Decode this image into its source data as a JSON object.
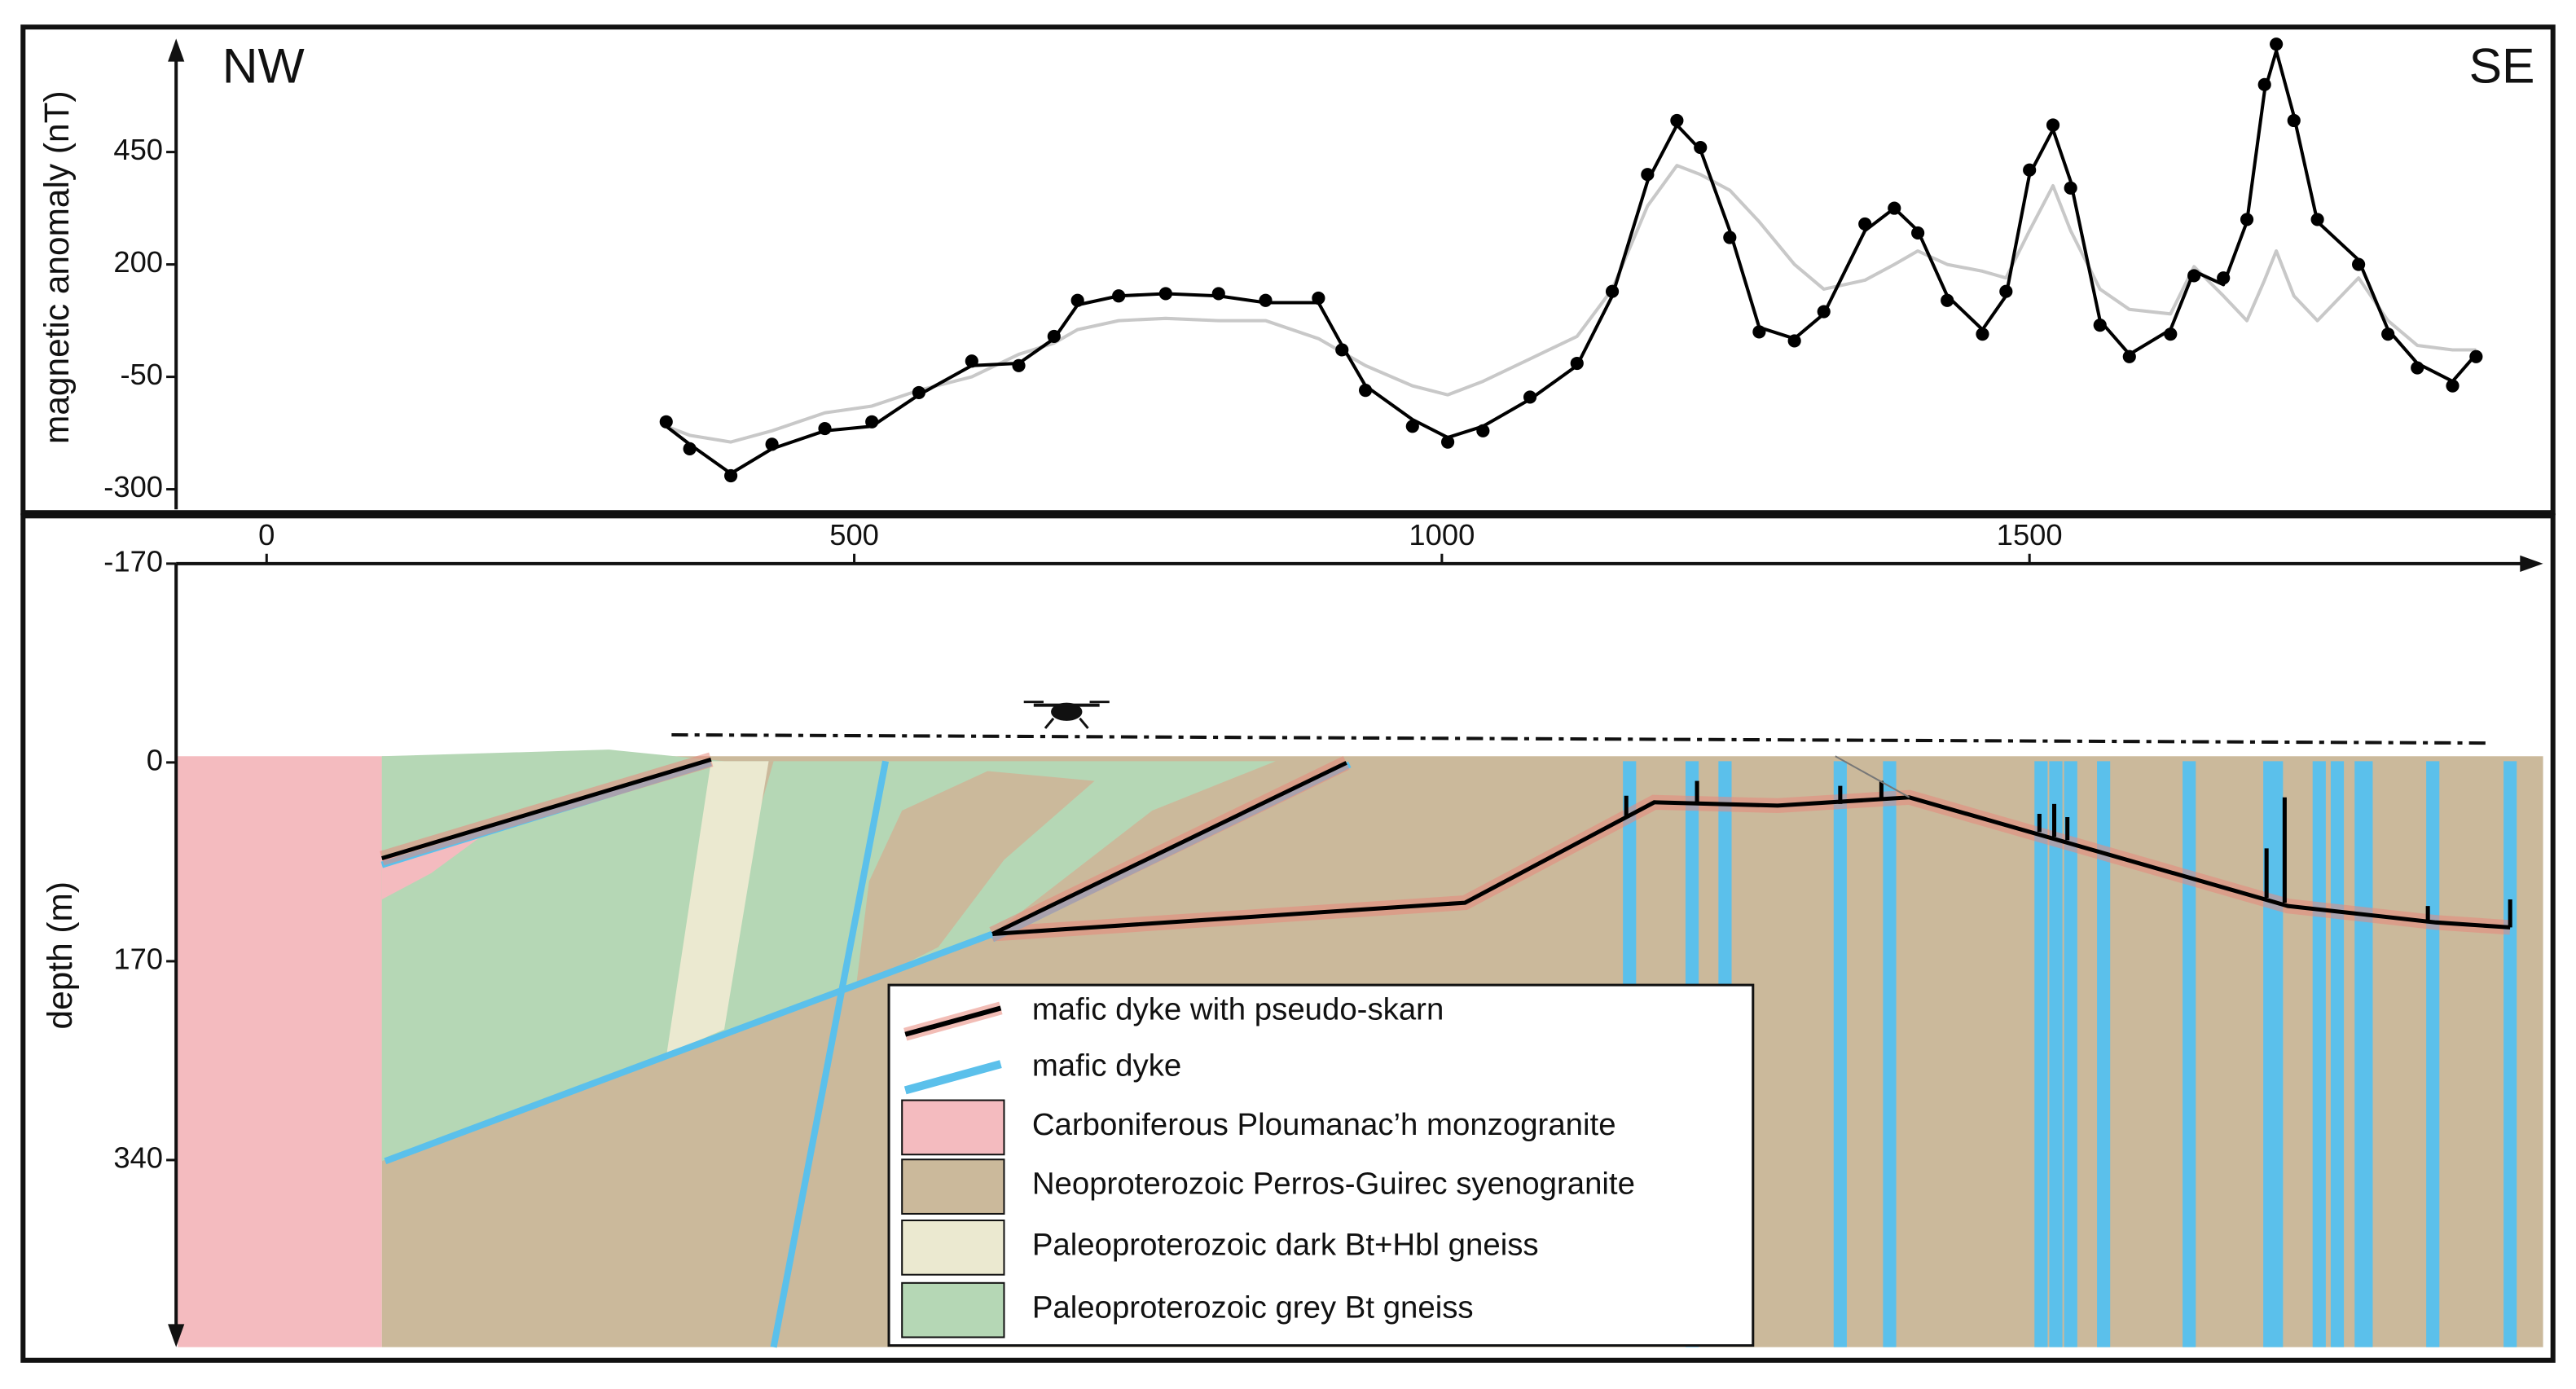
{
  "chart_data": [
    {
      "type": "line",
      "ylabel": "magnetic anomaly (nT)",
      "annotations": [
        "NW",
        "SE"
      ],
      "xlim": [
        -77,
        1937
      ],
      "ylim": [
        -330,
        695
      ],
      "yticks": [
        -300,
        -50,
        200,
        450
      ],
      "x": [
        340,
        360,
        395,
        430,
        475,
        515,
        555,
        600,
        640,
        670,
        690,
        725,
        765,
        810,
        850,
        895,
        915,
        935,
        975,
        1005,
        1035,
        1075,
        1115,
        1145,
        1175,
        1200,
        1220,
        1245,
        1270,
        1300,
        1325,
        1360,
        1385,
        1405,
        1430,
        1460,
        1480,
        1500,
        1520,
        1535,
        1560,
        1585,
        1620,
        1640,
        1665,
        1685,
        1700,
        1710,
        1725,
        1745,
        1780,
        1805,
        1830,
        1860,
        1880
      ],
      "series": [
        {
          "color": "#c8c8c8",
          "style": "line",
          "values": [
            -160,
            -180,
            -195,
            -170,
            -130,
            -115,
            -80,
            -50,
            0,
            25,
            55,
            75,
            80,
            75,
            75,
            35,
            5,
            -25,
            -70,
            -90,
            -60,
            -10,
            40,
            145,
            330,
            420,
            400,
            365,
            295,
            200,
            145,
            165,
            200,
            230,
            200,
            185,
            170,
            275,
            375,
            275,
            145,
            100,
            90,
            195,
            130,
            75,
            165,
            230,
            130,
            75,
            170,
            75,
            20,
            10,
            10
          ]
        },
        {
          "color": "#000000",
          "style": "line",
          "values": [
            -160,
            -200,
            -265,
            -210,
            -170,
            -160,
            -90,
            -25,
            -20,
            35,
            110,
            130,
            135,
            130,
            115,
            115,
            20,
            -70,
            -145,
            -185,
            -160,
            -100,
            -25,
            130,
            385,
            510,
            455,
            275,
            60,
            35,
            90,
            275,
            325,
            275,
            130,
            55,
            130,
            400,
            500,
            385,
            75,
            0,
            55,
            185,
            155,
            295,
            585,
            675,
            530,
            295,
            210,
            55,
            -20,
            -60,
            0
          ]
        },
        {
          "color": "#000000",
          "style": "dots",
          "values": [
            -150,
            -210,
            -270,
            -200,
            -165,
            -150,
            -85,
            -15,
            -25,
            40,
            120,
            130,
            135,
            135,
            120,
            125,
            10,
            -80,
            -160,
            -195,
            -170,
            -95,
            -20,
            140,
            400,
            520,
            460,
            260,
            50,
            30,
            95,
            290,
            325,
            270,
            120,
            45,
            140,
            410,
            510,
            370,
            65,
            -5,
            45,
            175,
            170,
            300,
            600,
            690,
            520,
            300,
            200,
            45,
            -30,
            -70,
            -5
          ]
        }
      ]
    },
    {
      "type": "section",
      "ylabel": "depth (m)",
      "xlim": [
        -77,
        1937
      ],
      "ylim": [
        500,
        -170
      ],
      "xticks": [
        0,
        500,
        1000,
        1500
      ],
      "yticks": [
        -170,
        0,
        170,
        340
      ],
      "legend": [
        {
          "label": "mafic dyke with pseudo-skarn",
          "style": "line",
          "color": "#000000",
          "glow": "#e8887c"
        },
        {
          "label": "mafic dyke",
          "style": "line",
          "color": "#5bc0eb"
        },
        {
          "label": "Carboniferous Ploumanac’h monzogranite",
          "style": "patch",
          "color": "#f4bbbf"
        },
        {
          "label": "Neoproterozoic Perros-Guirec syenogranite",
          "style": "patch",
          "color": "#cbb99b"
        },
        {
          "label": "Paleoproterozoic dark Bt+Hbl gneiss",
          "style": "patch",
          "color": "#ebe9d0"
        },
        {
          "label": "Paleoproterozoic grey Bt gneiss",
          "style": "patch",
          "color": "#b5d7b5"
        }
      ]
    }
  ]
}
